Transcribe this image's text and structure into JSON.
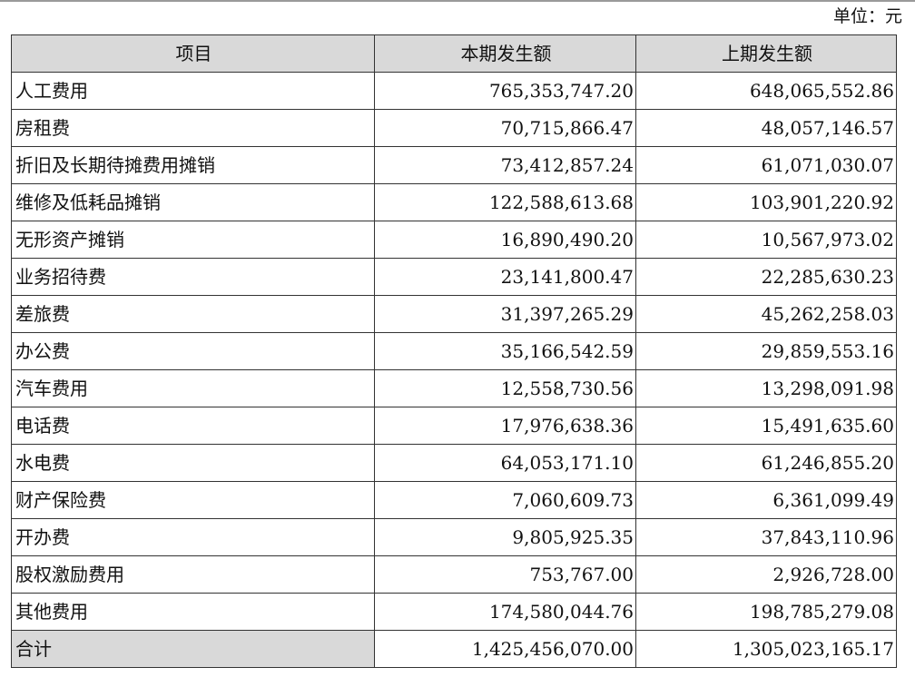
{
  "unit_label": "单位：元",
  "headers": {
    "item": "项目",
    "current": "本期发生额",
    "previous": "上期发生额"
  },
  "rows": [
    {
      "item": "人工费用",
      "current": "765,353,747.20",
      "previous": "648,065,552.86"
    },
    {
      "item": "房租费",
      "current": "70,715,866.47",
      "previous": "48,057,146.57"
    },
    {
      "item": "折旧及长期待摊费用摊销",
      "current": "73,412,857.24",
      "previous": "61,071,030.07"
    },
    {
      "item": "维修及低耗品摊销",
      "current": "122,588,613.68",
      "previous": "103,901,220.92"
    },
    {
      "item": "无形资产摊销",
      "current": "16,890,490.20",
      "previous": "10,567,973.02"
    },
    {
      "item": "业务招待费",
      "current": "23,141,800.47",
      "previous": "22,285,630.23"
    },
    {
      "item": "差旅费",
      "current": "31,397,265.29",
      "previous": "45,262,258.03"
    },
    {
      "item": "办公费",
      "current": "35,166,542.59",
      "previous": "29,859,553.16"
    },
    {
      "item": "汽车费用",
      "current": "12,558,730.56",
      "previous": "13,298,091.98"
    },
    {
      "item": "电话费",
      "current": "17,976,638.36",
      "previous": "15,491,635.60"
    },
    {
      "item": "水电费",
      "current": "64,053,171.10",
      "previous": "61,246,855.20"
    },
    {
      "item": "财产保险费",
      "current": "7,060,609.73",
      "previous": "6,361,099.49"
    },
    {
      "item": "开办费",
      "current": "9,805,925.35",
      "previous": "37,843,110.96"
    },
    {
      "item": "股权激励费用",
      "current": "753,767.00",
      "previous": "2,926,728.00"
    },
    {
      "item": "其他费用",
      "current": "174,580,044.76",
      "previous": "198,785,279.08"
    }
  ],
  "total": {
    "item": "合计",
    "current": "1,425,456,070.00",
    "previous": "1,305,023,165.17"
  }
}
